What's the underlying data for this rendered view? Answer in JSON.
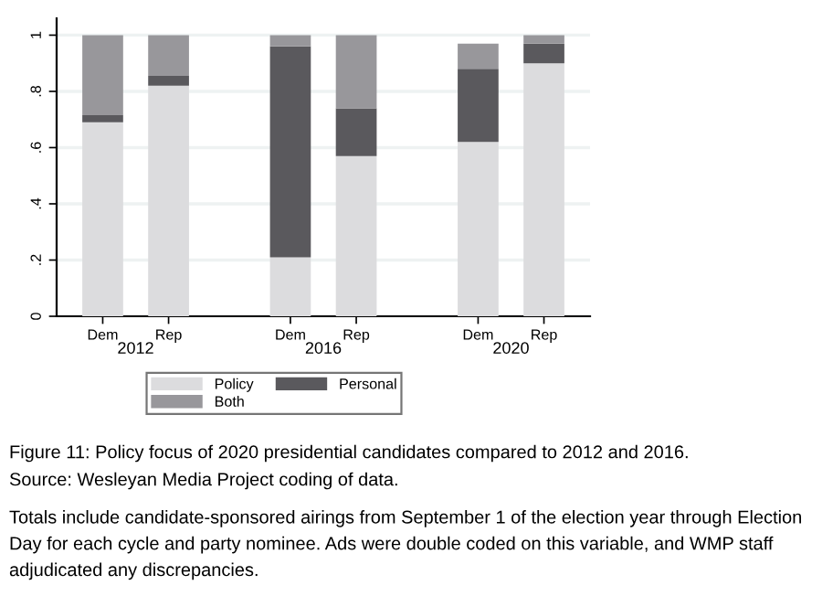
{
  "chart_data": {
    "type": "bar",
    "stacked": true,
    "title": "Figure 11: Policy focus of 2020 presidential candidates compared to 2012 and 2016.",
    "categories": [
      "Dem",
      "Rep",
      "Dem",
      "Rep",
      "Dem",
      "Rep"
    ],
    "series": [
      {
        "name": "Policy",
        "color": "#dcdcde",
        "values": [
          0.69,
          0.82,
          0.21,
          0.57,
          0.62,
          0.9
        ]
      },
      {
        "name": "Personal",
        "color": "#5a595d",
        "values": [
          0.025,
          0.035,
          0.75,
          0.17,
          0.26,
          0.07
        ]
      },
      {
        "name": "Both",
        "color": "#98979b",
        "values": [
          0.285,
          0.145,
          0.04,
          0.26,
          0.09,
          0.03
        ]
      }
    ],
    "ylim": [
      0,
      1.06
    ],
    "yticks": [
      0,
      {
        "value": 0.2,
        "label": ".2"
      },
      {
        "value": 0.4,
        "label": ".4"
      },
      {
        "value": 0.6,
        "label": ".6"
      },
      {
        "value": 0.8,
        "label": ".8"
      },
      1
    ],
    "grid": "y",
    "legend": "bottom",
    "annotations": [
      "2012",
      "2016",
      "2020",
      "Source: Wesleyan Media Project coding of data.",
      "Totals include candidate-sponsored airings from September 1 of the election year through Election Day for each cycle and party nominee. Ads were double coded on this variable, and WMP staff adjudicated any discrepancies."
    ]
  }
}
